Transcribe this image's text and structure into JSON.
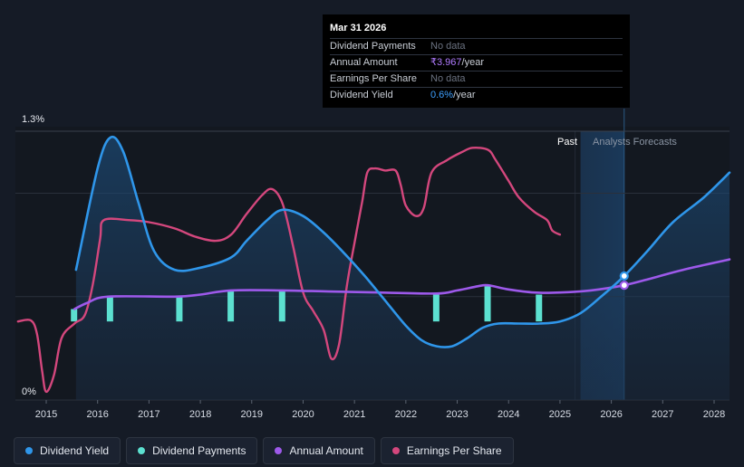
{
  "chart_data": {
    "type": "line",
    "y_axis": {
      "min_label": "0%",
      "max_label": "1.3%",
      "ylim": [
        0,
        1.3
      ]
    },
    "x_ticks": [
      "2015",
      "2016",
      "2017",
      "2018",
      "2019",
      "2020",
      "2021",
      "2022",
      "2023",
      "2024",
      "2025",
      "2026",
      "2027",
      "2028"
    ],
    "xlim": [
      2014.4,
      2028.3
    ],
    "regions": {
      "past_label": "Past",
      "forecast_label": "Analysts Forecasts",
      "forecast_start": 2025.4,
      "cursor_year": 2026.25
    },
    "series": [
      {
        "name": "Dividend Yield",
        "color": "#2f96ea",
        "fill": true,
        "points": [
          [
            2015.58,
            0.63
          ],
          [
            2016.0,
            1.12
          ],
          [
            2016.25,
            1.27
          ],
          [
            2016.5,
            1.2
          ],
          [
            2016.8,
            0.95
          ],
          [
            2017.1,
            0.72
          ],
          [
            2017.5,
            0.63
          ],
          [
            2018.0,
            0.64
          ],
          [
            2018.6,
            0.69
          ],
          [
            2018.9,
            0.77
          ],
          [
            2019.3,
            0.87
          ],
          [
            2019.6,
            0.92
          ],
          [
            2020.0,
            0.89
          ],
          [
            2020.4,
            0.81
          ],
          [
            2020.8,
            0.71
          ],
          [
            2021.2,
            0.6
          ],
          [
            2021.6,
            0.48
          ],
          [
            2022.0,
            0.36
          ],
          [
            2022.3,
            0.29
          ],
          [
            2022.6,
            0.26
          ],
          [
            2022.9,
            0.26
          ],
          [
            2023.2,
            0.3
          ],
          [
            2023.5,
            0.35
          ],
          [
            2023.8,
            0.37
          ],
          [
            2024.2,
            0.37
          ],
          [
            2024.6,
            0.37
          ],
          [
            2025.0,
            0.38
          ],
          [
            2025.4,
            0.42
          ],
          [
            2025.8,
            0.5
          ],
          [
            2026.25,
            0.6
          ],
          [
            2026.7,
            0.72
          ],
          [
            2027.2,
            0.86
          ],
          [
            2027.8,
            0.98
          ],
          [
            2028.3,
            1.1
          ]
        ],
        "highlight": {
          "x": 2026.25,
          "y": 0.6
        }
      },
      {
        "name": "Dividend Payments",
        "color": "#5ce0d0",
        "bars": [
          [
            2015.55,
            0.38,
            0.44
          ],
          [
            2016.25,
            0.38,
            0.5
          ],
          [
            2017.6,
            0.38,
            0.5
          ],
          [
            2018.6,
            0.38,
            0.53
          ],
          [
            2019.6,
            0.38,
            0.53
          ],
          [
            2022.6,
            0.38,
            0.51
          ],
          [
            2023.6,
            0.38,
            0.55
          ],
          [
            2024.6,
            0.38,
            0.51
          ]
        ]
      },
      {
        "name": "Annual Amount",
        "color": "#9d59ea",
        "points": [
          [
            2015.55,
            0.44
          ],
          [
            2015.8,
            0.47
          ],
          [
            2016.2,
            0.5
          ],
          [
            2017.5,
            0.5
          ],
          [
            2018.0,
            0.51
          ],
          [
            2018.6,
            0.53
          ],
          [
            2019.6,
            0.53
          ],
          [
            2020.5,
            0.525
          ],
          [
            2021.5,
            0.52
          ],
          [
            2022.6,
            0.515
          ],
          [
            2023.0,
            0.53
          ],
          [
            2023.4,
            0.55
          ],
          [
            2023.6,
            0.555
          ],
          [
            2024.0,
            0.535
          ],
          [
            2024.5,
            0.52
          ],
          [
            2025.0,
            0.52
          ],
          [
            2025.6,
            0.53
          ],
          [
            2026.25,
            0.555
          ],
          [
            2026.8,
            0.59
          ],
          [
            2027.4,
            0.63
          ],
          [
            2028.3,
            0.68
          ]
        ],
        "highlight": {
          "x": 2026.25,
          "y": 0.555
        }
      },
      {
        "name": "Earnings Per Share",
        "color": "#d4477d",
        "points": [
          [
            2014.45,
            0.38
          ],
          [
            2014.7,
            0.385
          ],
          [
            2014.82,
            0.32
          ],
          [
            2014.92,
            0.14
          ],
          [
            2015.0,
            0.04
          ],
          [
            2015.15,
            0.12
          ],
          [
            2015.3,
            0.3
          ],
          [
            2015.55,
            0.37
          ],
          [
            2015.75,
            0.41
          ],
          [
            2015.9,
            0.55
          ],
          [
            2016.05,
            0.78
          ],
          [
            2016.12,
            0.87
          ],
          [
            2016.6,
            0.87
          ],
          [
            2017.0,
            0.86
          ],
          [
            2017.5,
            0.83
          ],
          [
            2017.9,
            0.79
          ],
          [
            2018.3,
            0.77
          ],
          [
            2018.6,
            0.8
          ],
          [
            2018.9,
            0.9
          ],
          [
            2019.2,
            0.99
          ],
          [
            2019.4,
            1.02
          ],
          [
            2019.6,
            0.95
          ],
          [
            2019.8,
            0.75
          ],
          [
            2020.0,
            0.52
          ],
          [
            2020.2,
            0.43
          ],
          [
            2020.4,
            0.34
          ],
          [
            2020.55,
            0.2
          ],
          [
            2020.7,
            0.27
          ],
          [
            2020.85,
            0.55
          ],
          [
            2021.0,
            0.76
          ],
          [
            2021.15,
            0.96
          ],
          [
            2021.25,
            1.1
          ],
          [
            2021.4,
            1.12
          ],
          [
            2021.6,
            1.11
          ],
          [
            2021.8,
            1.11
          ],
          [
            2021.9,
            1.04
          ],
          [
            2022.0,
            0.94
          ],
          [
            2022.2,
            0.89
          ],
          [
            2022.35,
            0.93
          ],
          [
            2022.5,
            1.1
          ],
          [
            2022.8,
            1.16
          ],
          [
            2023.1,
            1.2
          ],
          [
            2023.3,
            1.22
          ],
          [
            2023.6,
            1.21
          ],
          [
            2023.75,
            1.16
          ],
          [
            2024.0,
            1.06
          ],
          [
            2024.2,
            0.98
          ],
          [
            2024.5,
            0.91
          ],
          [
            2024.75,
            0.87
          ],
          [
            2024.85,
            0.82
          ],
          [
            2025.0,
            0.8
          ]
        ]
      }
    ]
  },
  "tooltip": {
    "date": "Mar 31 2026",
    "rows": [
      {
        "label": "Dividend Payments",
        "value": "No data"
      },
      {
        "label": "Annual Amount",
        "value": "₹3.967",
        "unit": "/year"
      },
      {
        "label": "Earnings Per Share",
        "value": "No data"
      },
      {
        "label": "Dividend Yield",
        "value": "0.6%",
        "unit": "/year"
      }
    ]
  },
  "legend": [
    {
      "label": "Dividend Yield",
      "color": "#2f96ea"
    },
    {
      "label": "Dividend Payments",
      "color": "#5ce0d0"
    },
    {
      "label": "Annual Amount",
      "color": "#9d59ea"
    },
    {
      "label": "Earnings Per Share",
      "color": "#d4477d"
    }
  ]
}
